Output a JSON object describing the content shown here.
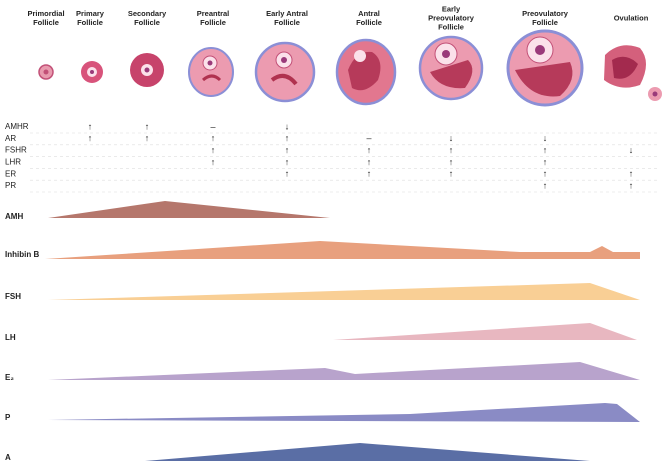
{
  "stages": [
    {
      "lines": [
        "Primordial",
        "Follicle"
      ]
    },
    {
      "lines": [
        "Primary",
        "Follicle"
      ]
    },
    {
      "lines": [
        "Secondary",
        "Follicle"
      ]
    },
    {
      "lines": [
        "Preantral",
        "Follicle"
      ]
    },
    {
      "lines": [
        "Early Antral",
        "Follicle"
      ]
    },
    {
      "lines": [
        "Antral",
        "Follicle"
      ]
    },
    {
      "lines": [
        "Early",
        "Preovulatory",
        "Follicle"
      ]
    },
    {
      "lines": [
        "Preovulatory",
        "Follicle"
      ]
    },
    {
      "lines": [
        "Ovulation"
      ]
    }
  ],
  "receptors": [
    {
      "name": "AMHR",
      "marks": [
        null,
        "↑",
        "↑",
        "–",
        "↓",
        null,
        null,
        null,
        null
      ]
    },
    {
      "name": "AR",
      "marks": [
        null,
        "↑",
        "↑",
        "↑",
        "↑",
        "–",
        "↓",
        "↓",
        null
      ]
    },
    {
      "name": "FSHR",
      "marks": [
        null,
        null,
        null,
        "↑",
        "↑",
        "↑",
        "↑",
        "↑",
        "↓"
      ]
    },
    {
      "name": "LHR",
      "marks": [
        null,
        null,
        null,
        "↑",
        "↑",
        "↑",
        "↑",
        "↑",
        null
      ]
    },
    {
      "name": "ER",
      "marks": [
        null,
        null,
        null,
        null,
        "↑",
        "↑",
        "↑",
        "↑",
        "↑"
      ]
    },
    {
      "name": "PR",
      "marks": [
        null,
        null,
        null,
        null,
        null,
        null,
        null,
        "↑",
        "↑"
      ]
    }
  ],
  "hormones": [
    "AMH",
    "Inhibin B",
    "FSH",
    "LH",
    "E₂",
    "P",
    "A"
  ]
}
